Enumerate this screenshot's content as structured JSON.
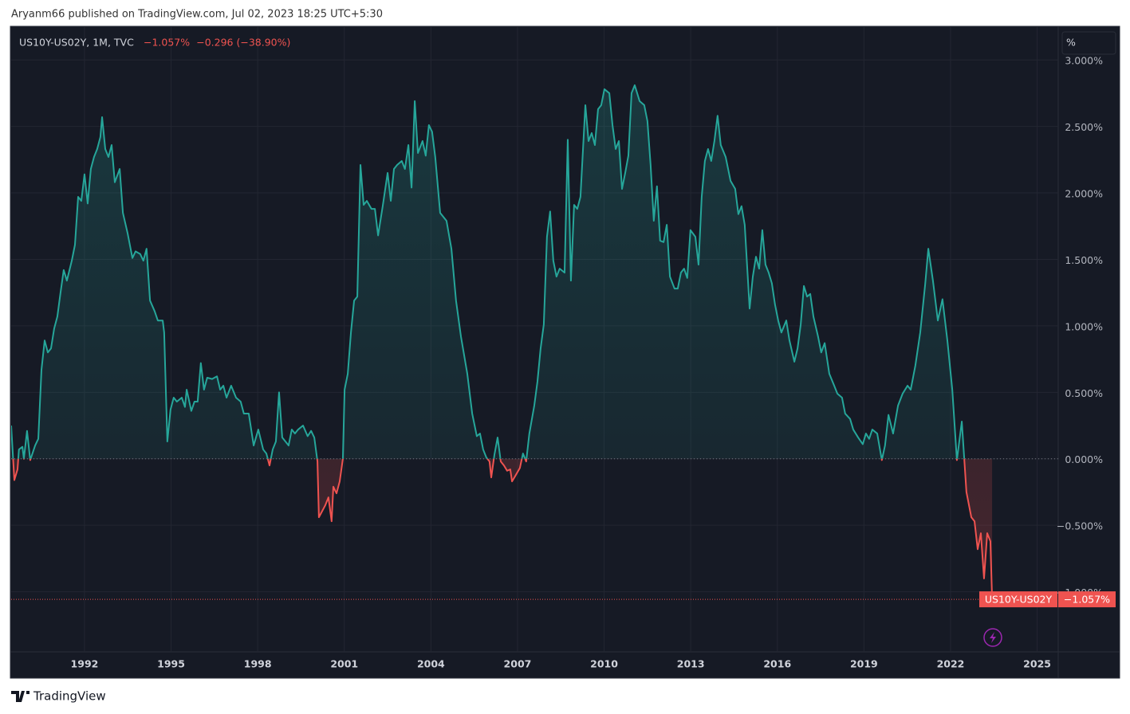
{
  "header": "Aryanm66 published on TradingView.com, Jul 02, 2023 18:25 UTC+5:30",
  "footer": "TradingView",
  "scale_button": "%",
  "chart_data": {
    "type": "line",
    "title": "US10Y-US02Y, 1M, TVC",
    "last_label": "−1.057%",
    "change_label": "−0.296 (−38.90%)",
    "series": [
      {
        "name": "US10Y-US02Y",
        "color": "#26a69a",
        "negative_color": "#ef5350",
        "x": [
          1989.46,
          1989.57,
          1989.68,
          1989.73,
          1989.85,
          1989.9,
          1990.01,
          1990.12,
          1990.29,
          1990.4,
          1990.51,
          1990.62,
          1990.73,
          1990.84,
          1990.95,
          1991.06,
          1991.17,
          1991.28,
          1991.39,
          1991.56,
          1991.67,
          1991.78,
          1991.89,
          1992.0,
          1992.11,
          1992.22,
          1992.33,
          1992.44,
          1992.55,
          1992.61,
          1992.72,
          1992.83,
          1992.94,
          1993.05,
          1993.22,
          1993.33,
          1993.49,
          1993.66,
          1993.77,
          1993.93,
          1994.04,
          1994.15,
          1994.27,
          1994.43,
          1994.54,
          1994.71,
          1994.76,
          1994.87,
          1994.98,
          1995.09,
          1995.2,
          1995.37,
          1995.48,
          1995.54,
          1995.7,
          1995.81,
          1995.92,
          1996.03,
          1996.14,
          1996.25,
          1996.42,
          1996.59,
          1996.7,
          1996.81,
          1996.92,
          1997.08,
          1997.25,
          1997.41,
          1997.52,
          1997.69,
          1997.86,
          1998.02,
          1998.19,
          1998.3,
          1998.41,
          1998.52,
          1998.63,
          1998.74,
          1998.85,
          1998.96,
          1999.07,
          1999.18,
          1999.29,
          1999.4,
          1999.57,
          1999.73,
          1999.85,
          1999.96,
          2000.07,
          2000.12,
          2000.34,
          2000.45,
          2000.56,
          2000.62,
          2000.73,
          2000.84,
          2000.95,
          2001.01,
          2001.12,
          2001.23,
          2001.34,
          2001.45,
          2001.56,
          2001.67,
          2001.78,
          2001.94,
          2002.06,
          2002.17,
          2002.33,
          2002.5,
          2002.61,
          2002.72,
          2002.83,
          2002.99,
          2003.1,
          2003.22,
          2003.33,
          2003.44,
          2003.55,
          2003.71,
          2003.82,
          2003.93,
          2004.04,
          2004.15,
          2004.32,
          2004.54,
          2004.71,
          2004.87,
          2005.04,
          2005.26,
          2005.43,
          2005.59,
          2005.7,
          2005.81,
          2005.92,
          2006.03,
          2006.09,
          2006.2,
          2006.31,
          2006.42,
          2006.53,
          2006.64,
          2006.75,
          2006.81,
          2006.92,
          2007.08,
          2007.19,
          2007.3,
          2007.41,
          2007.58,
          2007.69,
          2007.8,
          2007.91,
          2008.02,
          2008.13,
          2008.24,
          2008.35,
          2008.46,
          2008.63,
          2008.74,
          2008.85,
          2008.96,
          2009.07,
          2009.18,
          2009.35,
          2009.46,
          2009.57,
          2009.68,
          2009.79,
          2009.9,
          2010.01,
          2010.18,
          2010.29,
          2010.4,
          2010.51,
          2010.62,
          2010.73,
          2010.84,
          2010.95,
          2011.06,
          2011.23,
          2011.39,
          2011.5,
          2011.61,
          2011.72,
          2011.83,
          2011.94,
          2012.06,
          2012.17,
          2012.28,
          2012.44,
          2012.55,
          2012.66,
          2012.77,
          2012.88,
          2012.99,
          2013.16,
          2013.27,
          2013.38,
          2013.49,
          2013.6,
          2013.71,
          2013.82,
          2013.93,
          2014.04,
          2014.21,
          2014.38,
          2014.54,
          2014.65,
          2014.76,
          2014.87,
          2015.04,
          2015.15,
          2015.26,
          2015.37,
          2015.48,
          2015.59,
          2015.7,
          2015.81,
          2015.92,
          2016.03,
          2016.14,
          2016.31,
          2016.42,
          2016.59,
          2016.7,
          2016.81,
          2016.92,
          2017.03,
          2017.14,
          2017.25,
          2017.41,
          2017.52,
          2017.64,
          2017.8,
          2017.97,
          2018.08,
          2018.24,
          2018.35,
          2018.52,
          2018.63,
          2018.8,
          2018.96,
          2019.07,
          2019.18,
          2019.29,
          2019.46,
          2019.62,
          2019.73,
          2019.85,
          2020.01,
          2020.18,
          2020.34,
          2020.51,
          2020.62,
          2020.78,
          2020.95,
          2021.12,
          2021.23,
          2021.39,
          2021.56,
          2021.72,
          2021.89,
          2022.06,
          2022.22,
          2022.39,
          2022.55,
          2022.72,
          2022.83,
          2022.94,
          2023.05,
          2023.16,
          2023.27,
          2023.38,
          2023.44
        ],
        "values": [
          0.25,
          -0.16,
          -0.08,
          0.07,
          0.09,
          0,
          0.21,
          -0.01,
          0.1,
          0.15,
          0.67,
          0.89,
          0.8,
          0.83,
          0.98,
          1.07,
          1.25,
          1.42,
          1.34,
          1.49,
          1.61,
          1.97,
          1.94,
          2.14,
          1.92,
          2.18,
          2.27,
          2.33,
          2.42,
          2.57,
          2.33,
          2.27,
          2.36,
          2.08,
          2.18,
          1.85,
          1.7,
          1.51,
          1.56,
          1.54,
          1.49,
          1.58,
          1.19,
          1.11,
          1.04,
          1.04,
          0.95,
          0.13,
          0.37,
          0.46,
          0.43,
          0.46,
          0.39,
          0.52,
          0.36,
          0.43,
          0.43,
          0.72,
          0.52,
          0.61,
          0.6,
          0.62,
          0.52,
          0.55,
          0.46,
          0.55,
          0.46,
          0.43,
          0.34,
          0.34,
          0.1,
          0.22,
          0.07,
          0.04,
          -0.05,
          0.07,
          0.13,
          0.5,
          0.16,
          0.13,
          0.1,
          0.22,
          0.19,
          0.22,
          0.25,
          0.17,
          0.21,
          0.16,
          -0.02,
          -0.44,
          -0.35,
          -0.29,
          -0.47,
          -0.21,
          -0.26,
          -0.17,
          0,
          0.52,
          0.64,
          0.95,
          1.19,
          1.22,
          2.21,
          1.91,
          1.94,
          1.88,
          1.88,
          1.68,
          1.9,
          2.15,
          1.94,
          2.18,
          2.21,
          2.24,
          2.18,
          2.36,
          2.04,
          2.69,
          2.3,
          2.39,
          2.28,
          2.51,
          2.46,
          2.27,
          1.85,
          1.79,
          1.58,
          1.19,
          0.92,
          0.64,
          0.34,
          0.17,
          0.19,
          0.07,
          0.01,
          -0.02,
          -0.14,
          0.03,
          0.16,
          -0.02,
          -0.05,
          -0.09,
          -0.08,
          -0.17,
          -0.13,
          -0.07,
          0.04,
          -0.02,
          0.19,
          0.4,
          0.58,
          0.83,
          1.01,
          1.67,
          1.86,
          1.49,
          1.37,
          1.43,
          1.4,
          2.4,
          1.34,
          1.91,
          1.88,
          1.97,
          2.66,
          2.39,
          2.45,
          2.36,
          2.63,
          2.66,
          2.78,
          2.75,
          2.51,
          2.33,
          2.39,
          2.03,
          2.15,
          2.28,
          2.75,
          2.81,
          2.69,
          2.66,
          2.54,
          2.21,
          1.79,
          2.05,
          1.64,
          1.63,
          1.76,
          1.37,
          1.28,
          1.28,
          1.4,
          1.43,
          1.36,
          1.72,
          1.67,
          1.46,
          1.97,
          2.24,
          2.33,
          2.24,
          2.39,
          2.58,
          2.36,
          2.27,
          2.09,
          2.03,
          1.84,
          1.9,
          1.76,
          1.13,
          1.37,
          1.52,
          1.43,
          1.72,
          1.46,
          1.4,
          1.32,
          1.16,
          1.04,
          0.95,
          1.04,
          0.89,
          0.73,
          0.83,
          1.01,
          1.3,
          1.22,
          1.24,
          1.07,
          0.92,
          0.8,
          0.87,
          0.64,
          0.55,
          0.49,
          0.46,
          0.34,
          0.3,
          0.22,
          0.16,
          0.11,
          0.19,
          0.15,
          0.22,
          0.19,
          -0.01,
          0.1,
          0.33,
          0.19,
          0.4,
          0.49,
          0.55,
          0.52,
          0.7,
          0.95,
          1.31,
          1.58,
          1.34,
          1.04,
          1.2,
          0.89,
          0.52,
          -0.01,
          0.28,
          -0.25,
          -0.44,
          -0.47,
          -0.68,
          -0.56,
          -0.9,
          -0.56,
          -0.62,
          -1.057
        ]
      }
    ],
    "xlim": [
      1989.46,
      2025.73
    ],
    "xticks": [
      1992,
      1995,
      1998,
      2001,
      2004,
      2007,
      2010,
      2013,
      2016,
      2019,
      2022,
      2025
    ],
    "ylim": [
      -1.452,
      3.247
    ],
    "yticks": [
      {
        "value": 3,
        "label": "3.000%"
      },
      {
        "value": 2.5,
        "label": "2.500%"
      },
      {
        "value": 2,
        "label": "2.000%"
      },
      {
        "value": 1.5,
        "label": "1.500%"
      },
      {
        "value": 1,
        "label": "1.000%"
      },
      {
        "value": 0.5,
        "label": "0.500%"
      },
      {
        "value": 0,
        "label": "0.000%"
      },
      {
        "value": -0.5,
        "label": "−0.500%"
      },
      {
        "value": -1,
        "label": "−1.000%"
      }
    ],
    "grid": true
  }
}
